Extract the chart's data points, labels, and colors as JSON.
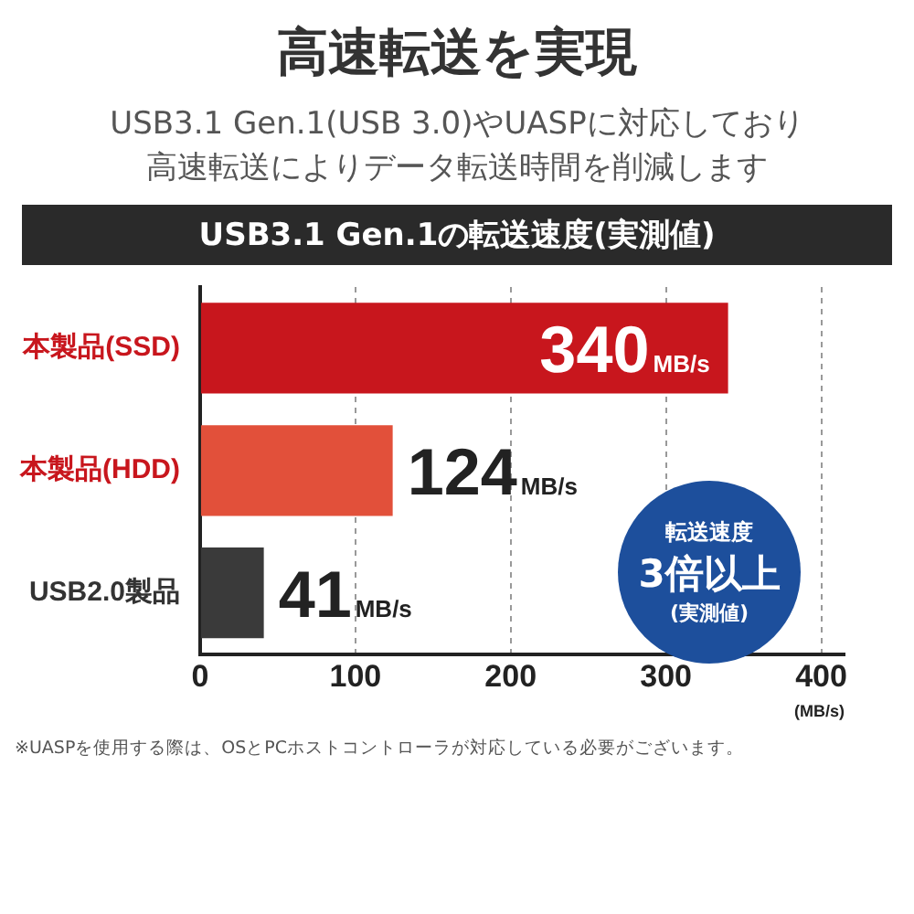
{
  "chart_data": {
    "type": "bar",
    "orientation": "horizontal",
    "title": "高速転送を実現",
    "subtitle": "USB3.1 Gen.1(USB 3.0)やUASPに対応しており高速転送によりデータ転送時間を削減します",
    "categories": [
      "本製品(SSD)",
      "本製品(HDD)",
      "USB2.0製品"
    ],
    "series": [
      {
        "values": [
          340,
          124,
          41
        ],
        "colors": [
          "#c8161d",
          "#e2503a",
          "#3a3a3a"
        ],
        "value_labels": [
          "340MB/s",
          "124MB/s",
          "41MB/s"
        ]
      }
    ],
    "xlim": [
      0,
      415
    ],
    "xticks": [
      0,
      100,
      200,
      300,
      400
    ],
    "xlabel": "(MB/s)",
    "grid": "x",
    "legend": false,
    "annotations": [
      "USB3.1 Gen.1の転送速度(実測値)",
      "転送速度",
      "3倍以上",
      "(実測値)",
      "※UASPを使用する際は、OSとPCホストコントローラが対応している必要がございます。"
    ]
  }
}
